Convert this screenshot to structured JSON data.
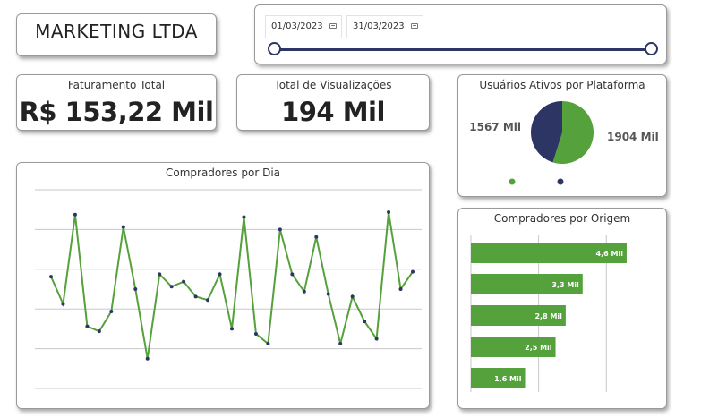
{
  "company": {
    "name": "MARKETING LTDA"
  },
  "date_filter": {
    "start": "01/03/2023",
    "end": "31/03/2023"
  },
  "kpis": {
    "revenue": {
      "title": "Faturamento Total",
      "value": "R$ 153,22 Mil"
    },
    "views": {
      "title": "Total de Visualizações",
      "value": "194 Mil"
    }
  },
  "colors": {
    "green": "#55a13b",
    "navy": "#2c3564",
    "grid": "#c8c8c8"
  },
  "charts": {
    "platform": {
      "title": "Usuários Ativos por Plataforma",
      "slices": [
        {
          "label": "1904 Mil",
          "value": 1904,
          "color": "#55a13b"
        },
        {
          "label": "1567 Mil",
          "value": 1567,
          "color": "#2c3564"
        }
      ]
    },
    "daily": {
      "title": "Compradores por Dia"
    },
    "origin": {
      "title": "Compradores por Origem"
    }
  },
  "chart_data": [
    {
      "type": "pie",
      "title": "Usuários Ativos por Plataforma",
      "labels": [
        "1904 Mil",
        "1567 Mil"
      ],
      "values": [
        1904,
        1567
      ],
      "colors": [
        "#55a13b",
        "#2c3564"
      ]
    },
    {
      "type": "line",
      "title": "Compradores por Dia",
      "x": [
        1,
        2,
        3,
        4,
        5,
        6,
        7,
        8,
        9,
        10,
        11,
        12,
        13,
        14,
        15,
        16,
        17,
        18,
        19,
        20,
        21,
        22,
        23,
        24,
        25,
        26,
        27,
        28,
        29,
        30,
        31
      ],
      "values": [
        375,
        320,
        500,
        275,
        265,
        305,
        475,
        350,
        210,
        380,
        355,
        365,
        335,
        328,
        380,
        270,
        495,
        260,
        240,
        470,
        380,
        345,
        455,
        340,
        240,
        335,
        285,
        250,
        505,
        350,
        385
      ],
      "ylim": [
        150,
        550
      ],
      "grid": true
    },
    {
      "type": "bar",
      "orientation": "horizontal",
      "title": "Compradores por Origem",
      "categories": [
        "",
        "",
        "",
        "",
        ""
      ],
      "values": [
        4.6,
        3.3,
        2.8,
        2.5,
        1.6
      ],
      "labels": [
        "4,6 Mil",
        "3,3 Mil",
        "2,8 Mil",
        "2,5 Mil",
        "1,6 Mil"
      ],
      "xlim": [
        0,
        5.5
      ],
      "color": "#55a13b"
    }
  ]
}
